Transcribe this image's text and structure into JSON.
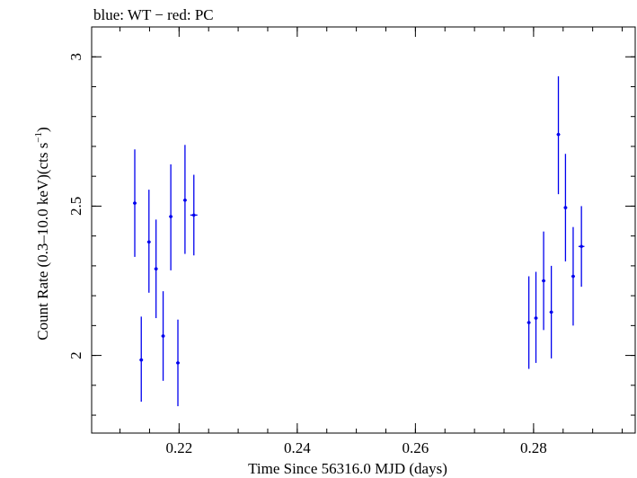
{
  "chart_data": {
    "type": "scatter",
    "title": "blue: WT − red: PC",
    "xlabel": "Time Since 56316.0 MJD (days)",
    "ylabel_main": "Count Rate (0.3–10.0 keV)(cts s",
    "ylabel_sup": "−1",
    "ylabel_close": ")",
    "xlim": [
      0.2052,
      0.2972
    ],
    "ylim": [
      1.74,
      3.1
    ],
    "x_ticks": [
      0.22,
      0.24,
      0.26,
      0.28
    ],
    "x_tick_labels": [
      "0.22",
      "0.24",
      "0.26",
      "0.28"
    ],
    "y_ticks": [
      2,
      2.5,
      3
    ],
    "y_tick_labels": [
      "2",
      "2.5",
      "3"
    ],
    "series": [
      {
        "name": "WT",
        "color": "#0000ee",
        "points": [
          {
            "x": 0.2125,
            "y": 2.51,
            "xerr": 0.0003,
            "ylo": 2.33,
            "yhi": 2.69
          },
          {
            "x": 0.2136,
            "y": 1.985,
            "xerr": 0.0003,
            "ylo": 1.845,
            "yhi": 2.13
          },
          {
            "x": 0.2149,
            "y": 2.38,
            "xerr": 0.0003,
            "ylo": 2.21,
            "yhi": 2.555
          },
          {
            "x": 0.2161,
            "y": 2.29,
            "xerr": 0.0003,
            "ylo": 2.125,
            "yhi": 2.455
          },
          {
            "x": 0.2173,
            "y": 2.065,
            "xerr": 0.0003,
            "ylo": 1.915,
            "yhi": 2.215
          },
          {
            "x": 0.2186,
            "y": 2.465,
            "xerr": 0.0003,
            "ylo": 2.285,
            "yhi": 2.64
          },
          {
            "x": 0.2198,
            "y": 1.975,
            "xerr": 0.0003,
            "ylo": 1.83,
            "yhi": 2.12
          },
          {
            "x": 0.221,
            "y": 2.52,
            "xerr": 0.0003,
            "ylo": 2.34,
            "yhi": 2.705
          },
          {
            "x": 0.2225,
            "y": 2.47,
            "xerr": 0.0006,
            "ylo": 2.335,
            "yhi": 2.605
          },
          {
            "x": 0.2792,
            "y": 2.11,
            "xerr": 0.0003,
            "ylo": 1.955,
            "yhi": 2.265
          },
          {
            "x": 0.2804,
            "y": 2.125,
            "xerr": 0.0003,
            "ylo": 1.975,
            "yhi": 2.28
          },
          {
            "x": 0.2817,
            "y": 2.25,
            "xerr": 0.0003,
            "ylo": 2.085,
            "yhi": 2.415
          },
          {
            "x": 0.283,
            "y": 2.145,
            "xerr": 0.0003,
            "ylo": 1.99,
            "yhi": 2.3
          },
          {
            "x": 0.2842,
            "y": 2.74,
            "xerr": 0.0003,
            "ylo": 2.54,
            "yhi": 2.935
          },
          {
            "x": 0.2854,
            "y": 2.495,
            "xerr": 0.0003,
            "ylo": 2.315,
            "yhi": 2.675
          },
          {
            "x": 0.2867,
            "y": 2.265,
            "xerr": 0.0003,
            "ylo": 2.1,
            "yhi": 2.43
          },
          {
            "x": 0.2881,
            "y": 2.365,
            "xerr": 0.0005,
            "ylo": 2.23,
            "yhi": 2.5
          }
        ]
      }
    ]
  }
}
